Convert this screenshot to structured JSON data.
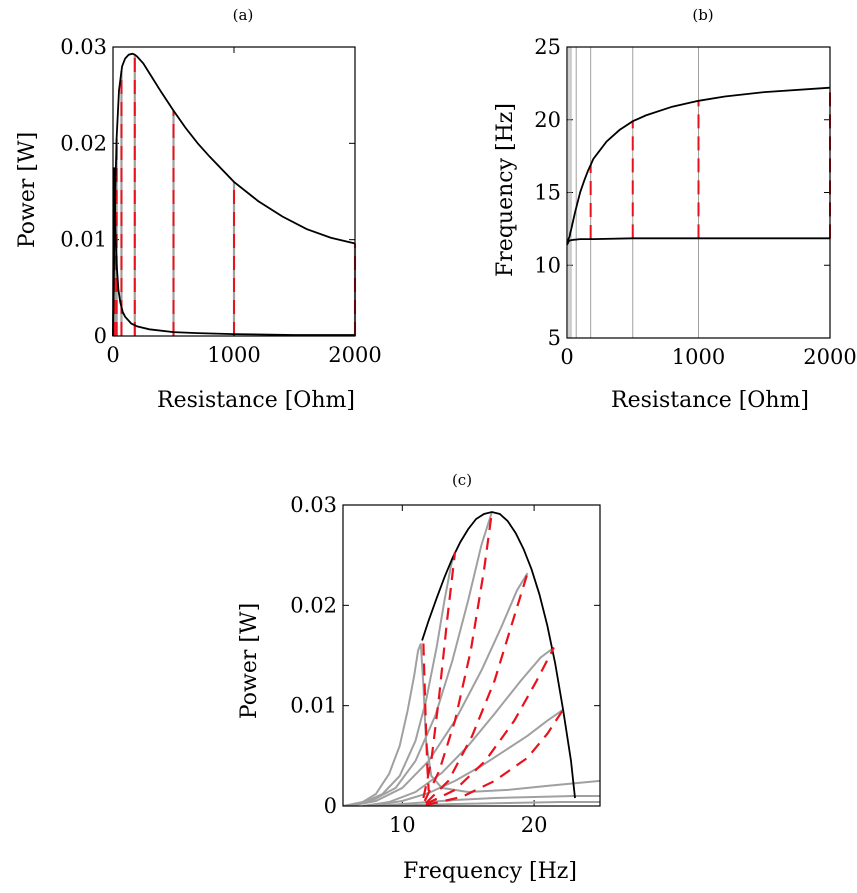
{
  "colors": {
    "black": "#000000",
    "gray": "#a0a0a0",
    "red": "#e8121d",
    "grid": "#a0a0a0"
  },
  "chart_data": [
    {
      "id": "a",
      "type": "line",
      "title": "(a)",
      "xlabel": "Resistance [Ohm]",
      "ylabel": "Power [W]",
      "xlim": [
        0,
        2000
      ],
      "ylim": [
        0,
        0.03
      ],
      "xticks": [
        0,
        1000,
        2000
      ],
      "xtick_labels": [
        "0",
        "1000",
        "2000"
      ],
      "yticks": [
        0,
        0.01,
        0.02,
        0.03
      ],
      "ytick_labels": [
        "0",
        "0.01",
        "0.02",
        "0.03"
      ],
      "series": [
        {
          "x": [
            0,
            10,
            20,
            30,
            50,
            75,
            100,
            130,
            160,
            180,
            200,
            250,
            300,
            400,
            500,
            600,
            700,
            800,
            1000,
            1200,
            1400,
            1600,
            1800,
            2000
          ],
          "y": [
            0,
            0.0085,
            0.0155,
            0.0205,
            0.0255,
            0.028,
            0.0288,
            0.0292,
            0.0293,
            0.0292,
            0.029,
            0.0283,
            0.0273,
            0.0253,
            0.0234,
            0.0216,
            0.02,
            0.0186,
            0.016,
            0.014,
            0.0124,
            0.0111,
            0.0102,
            0.0096
          ]
        },
        {
          "x": [
            0,
            5,
            10,
            15,
            20,
            30,
            45,
            60,
            80,
            100,
            150,
            200,
            300,
            500,
            700,
            1000,
            1500,
            2000
          ],
          "y": [
            0,
            0.013,
            0.0175,
            0.0145,
            0.011,
            0.0075,
            0.0048,
            0.0035,
            0.0025,
            0.002,
            0.0013,
            0.001,
            0.0007,
            0.0004,
            0.0003,
            0.0002,
            0.0001,
            0.0001
          ]
        }
      ],
      "stems_x": [
        15,
        30,
        70,
        180,
        500,
        1000,
        2000
      ],
      "stems_top": [
        0.0085,
        0.0205,
        0.0275,
        0.0292,
        0.0234,
        0.016,
        0.0096
      ]
    },
    {
      "id": "b",
      "type": "line",
      "title": "(b)",
      "xlabel": "Resistance [Ohm]",
      "ylabel": "Frequency [Hz]",
      "xlim": [
        0,
        2000
      ],
      "ylim": [
        5,
        25
      ],
      "xticks": [
        0,
        1000,
        2000
      ],
      "xtick_labels": [
        "0",
        "1000",
        "2000"
      ],
      "yticks": [
        5,
        10,
        15,
        20,
        25
      ],
      "ytick_labels": [
        "5",
        "10",
        "15",
        "20",
        "25"
      ],
      "series": [
        {
          "x": [
            0,
            20,
            40,
            60,
            80,
            100,
            130,
            160,
            180,
            200,
            250,
            300,
            400,
            500,
            600,
            800,
            1000,
            1200,
            1500,
            2000
          ],
          "y": [
            11.5,
            12.0,
            12.8,
            13.6,
            14.3,
            15.0,
            15.8,
            16.5,
            16.9,
            17.3,
            17.9,
            18.5,
            19.3,
            19.9,
            20.3,
            20.9,
            21.3,
            21.6,
            21.9,
            22.2
          ]
        },
        {
          "x": [
            0,
            10,
            20,
            50,
            100,
            200,
            500,
            1000,
            1500,
            2000
          ],
          "y": [
            11.4,
            11.6,
            11.7,
            11.75,
            11.8,
            11.8,
            11.85,
            11.85,
            11.85,
            11.85
          ]
        }
      ],
      "grid_x": [
        15,
        30,
        70,
        180,
        500,
        1000
      ],
      "segments": [
        {
          "x": 180,
          "y0": 11.8,
          "y1": 16.9
        },
        {
          "x": 500,
          "y0": 11.85,
          "y1": 19.9
        },
        {
          "x": 1000,
          "y0": 11.85,
          "y1": 21.3
        },
        {
          "x": 2000,
          "y0": 11.85,
          "y1": 22.2
        }
      ]
    },
    {
      "id": "c",
      "type": "line",
      "title": "(c)",
      "xlabel": "Frequency [Hz]",
      "ylabel": "Power [W]",
      "xlim": [
        5.5,
        25
      ],
      "ylim": [
        0,
        0.03
      ],
      "xticks": [
        10,
        20
      ],
      "xtick_labels": [
        "10",
        "20"
      ],
      "yticks": [
        0,
        0.01,
        0.02,
        0.03
      ],
      "ytick_labels": [
        "0",
        "0.01",
        "0.02",
        "0.03"
      ],
      "envelope": {
        "x": [
          11.5,
          12.0,
          12.6,
          13.2,
          13.8,
          14.4,
          15.0,
          15.6,
          16.2,
          16.8,
          17.4,
          18.0,
          18.6,
          19.2,
          19.8,
          20.4,
          21.0,
          21.6,
          22.2,
          22.8,
          23.1
        ],
        "y": [
          0.0165,
          0.0185,
          0.0207,
          0.0228,
          0.0247,
          0.0263,
          0.0276,
          0.0286,
          0.0291,
          0.0293,
          0.0291,
          0.0284,
          0.0272,
          0.0256,
          0.0236,
          0.0211,
          0.018,
          0.0142,
          0.0096,
          0.0045,
          0.0008
        ]
      },
      "curves": [
        {
          "x": [
            5.5,
            7,
            8,
            9,
            9.8,
            10.4,
            10.9,
            11.2,
            11.4,
            11.6,
            11.8,
            12.2,
            13,
            15,
            18,
            21,
            25
          ],
          "y": [
            0,
            0.0004,
            0.0012,
            0.0032,
            0.006,
            0.0095,
            0.013,
            0.0155,
            0.0162,
            0.012,
            0.0065,
            0.003,
            0.0018,
            0.0014,
            0.0016,
            0.002,
            0.0025
          ]
        },
        {
          "x": [
            5.5,
            7,
            8.5,
            9.8,
            11,
            11.8,
            12.6,
            13.2,
            13.7,
            14.0
          ],
          "y": [
            0,
            0.0003,
            0.0012,
            0.003,
            0.0065,
            0.0105,
            0.0158,
            0.0205,
            0.024,
            0.0253
          ]
        },
        {
          "x": [
            5.5,
            7.5,
            9.5,
            11.0,
            12.5,
            13.8,
            15.0,
            16.0,
            16.8
          ],
          "y": [
            0,
            0.0004,
            0.0018,
            0.0045,
            0.009,
            0.0145,
            0.0205,
            0.026,
            0.0293
          ]
        },
        {
          "x": [
            6,
            8,
            10,
            12,
            14,
            16,
            17.5,
            18.7,
            19.5
          ],
          "y": [
            0,
            0.0005,
            0.0018,
            0.0045,
            0.0085,
            0.0135,
            0.0178,
            0.0215,
            0.0232
          ]
        },
        {
          "x": [
            7,
            9,
            11,
            13,
            15,
            17,
            19,
            20.5,
            21.5
          ],
          "y": [
            0,
            0.0004,
            0.0014,
            0.0033,
            0.006,
            0.0092,
            0.0125,
            0.0148,
            0.0158
          ]
        },
        {
          "x": [
            7.5,
            10,
            12,
            14,
            16,
            18,
            19.5,
            21,
            22.2
          ],
          "y": [
            0,
            0.0005,
            0.0013,
            0.0025,
            0.004,
            0.0057,
            0.007,
            0.0085,
            0.0096
          ]
        },
        {
          "x": [
            8,
            10,
            12,
            14,
            17,
            20,
            23,
            25
          ],
          "y": [
            0,
            0.0002,
            0.0004,
            0.0006,
            0.0008,
            0.0009,
            0.001,
            0.001
          ]
        },
        {
          "x": [
            8.5,
            11,
            14,
            18,
            22,
            25
          ],
          "y": [
            0,
            0.0001,
            0.0002,
            0.0003,
            0.0004,
            0.0004
          ]
        }
      ],
      "dashed": [
        {
          "x": [
            11.6,
            11.75,
            11.9,
            12.0
          ],
          "y": [
            0.0162,
            0.0095,
            0.004,
            0.0015
          ]
        },
        {
          "x": [
            11.6,
            12.2,
            12.8,
            13.4,
            14.0
          ],
          "y": [
            0.0008,
            0.0045,
            0.011,
            0.0185,
            0.0253
          ]
        },
        {
          "x": [
            11.7,
            12.8,
            14.0,
            15.2,
            16.2,
            16.8
          ],
          "y": [
            0.0005,
            0.0035,
            0.0085,
            0.0155,
            0.0235,
            0.0293
          ]
        },
        {
          "x": [
            11.8,
            13.5,
            15.3,
            17.0,
            18.4,
            19.5
          ],
          "y": [
            0.0003,
            0.0025,
            0.007,
            0.0125,
            0.0185,
            0.0232
          ]
        },
        {
          "x": [
            11.8,
            14.0,
            16.3,
            18.5,
            20.2,
            21.5
          ],
          "y": [
            0.0002,
            0.0016,
            0.0045,
            0.0085,
            0.0125,
            0.0158
          ]
        },
        {
          "x": [
            11.8,
            14.5,
            17.0,
            19.5,
            21.0,
            22.2
          ],
          "y": [
            0.0001,
            0.0009,
            0.0025,
            0.0048,
            0.0072,
            0.0096
          ]
        }
      ]
    }
  ]
}
